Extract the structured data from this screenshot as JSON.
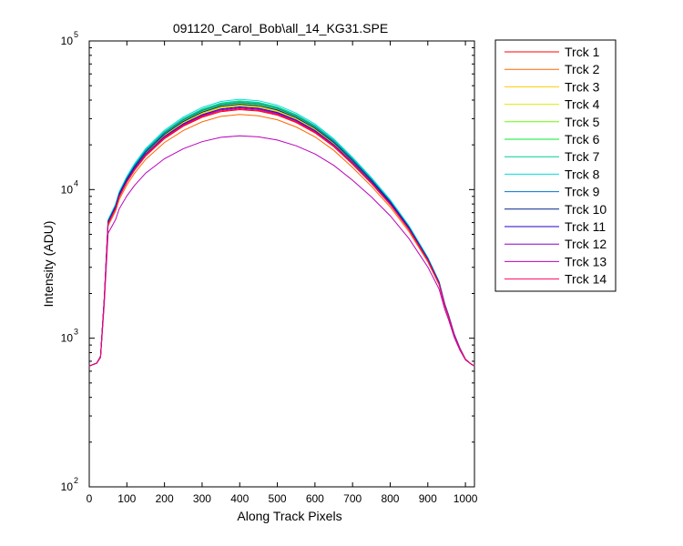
{
  "chart_data": {
    "type": "line",
    "title": "091120_Carol_Bob\\all_14_KG31.SPE",
    "xlabel": "Along Track Pixels",
    "ylabel": "Intensity (ADU)",
    "yscale": "log",
    "xlim": [
      0,
      1024
    ],
    "ylim": [
      100,
      100000
    ],
    "x_ticks": [
      0,
      100,
      200,
      300,
      400,
      500,
      600,
      700,
      800,
      900,
      1000
    ],
    "y_ticks": [
      {
        "value": 100,
        "base": "10",
        "exp": "2"
      },
      {
        "value": 1000,
        "base": "10",
        "exp": "3"
      },
      {
        "value": 10000,
        "base": "10",
        "exp": "4"
      },
      {
        "value": 100000,
        "base": "10",
        "exp": "5"
      }
    ],
    "legend_position": "outside-right",
    "shape_points": [
      [
        0,
        650
      ],
      [
        20,
        680
      ],
      [
        30,
        750
      ],
      [
        40,
        1800
      ],
      [
        50,
        5800
      ],
      [
        60,
        6500
      ],
      [
        70,
        7300
      ],
      [
        80,
        8800
      ],
      [
        100,
        11000
      ],
      [
        120,
        13200
      ],
      [
        150,
        16500
      ],
      [
        200,
        21500
      ],
      [
        250,
        26000
      ],
      [
        300,
        29800
      ],
      [
        350,
        32500
      ],
      [
        400,
        33500
      ],
      [
        450,
        32800
      ],
      [
        500,
        30800
      ],
      [
        550,
        27500
      ],
      [
        600,
        23500
      ],
      [
        650,
        19000
      ],
      [
        700,
        14500
      ],
      [
        750,
        10800
      ],
      [
        800,
        7800
      ],
      [
        850,
        5300
      ],
      [
        900,
        3300
      ],
      [
        930,
        2300
      ],
      [
        945,
        1650
      ],
      [
        955,
        1400
      ],
      [
        970,
        1050
      ],
      [
        985,
        850
      ],
      [
        1000,
        720
      ],
      [
        1015,
        670
      ],
      [
        1024,
        650
      ]
    ],
    "series": [
      {
        "name": "Trck 1",
        "color": "#ff0000",
        "peak": 34500
      },
      {
        "name": "Trck 2",
        "color": "#ff6600",
        "peak": 32000
      },
      {
        "name": "Trck 3",
        "color": "#ffcc00",
        "peak": 36500
      },
      {
        "name": "Trck 4",
        "color": "#ddee00",
        "peak": 37000
      },
      {
        "name": "Trck 5",
        "color": "#66ff00",
        "peak": 38000
      },
      {
        "name": "Trck 6",
        "color": "#00ee33",
        "peak": 39000
      },
      {
        "name": "Trck 7",
        "color": "#00cc99",
        "peak": 39500
      },
      {
        "name": "Trck 8",
        "color": "#00dddd",
        "peak": 40500
      },
      {
        "name": "Trck 9",
        "color": "#0077cc",
        "peak": 38500
      },
      {
        "name": "Trck 10",
        "color": "#002288",
        "peak": 37500
      },
      {
        "name": "Trck 11",
        "color": "#2200cc",
        "peak": 36000
      },
      {
        "name": "Trck 12",
        "color": "#8800cc",
        "peak": 35500
      },
      {
        "name": "Trck 13",
        "color": "#bb00bb",
        "peak": 23000
      },
      {
        "name": "Trck 14",
        "color": "#ff0066",
        "peak": 35000
      }
    ]
  }
}
